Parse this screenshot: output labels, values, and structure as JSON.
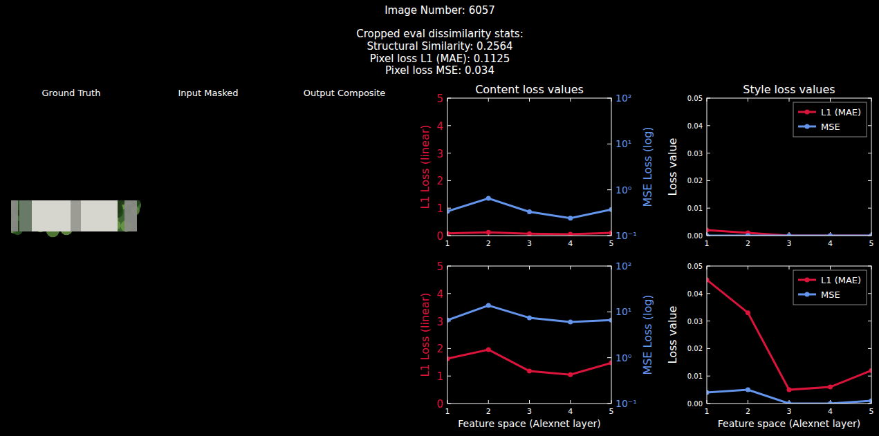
{
  "header": {
    "lines": [
      "Image Number: 6057",
      "Cropped eval dissimilarity stats:",
      "Structural Similarity: 0.2564",
      "Pixel loss L1 (MAE): 0.1125",
      "Pixel loss MSE: 0.034"
    ]
  },
  "panels": {
    "titles": [
      "Ground Truth",
      "Input Masked",
      "Output Composite"
    ]
  },
  "chart_data": [
    {
      "type": "line",
      "title": "Content loss values",
      "y_label": "L1 Loss (linear)",
      "y2_label": "MSE Loss (log)",
      "x": [
        1,
        2,
        3,
        4,
        5
      ],
      "xlim": [
        1,
        5
      ],
      "xticks": [
        1,
        2,
        3,
        4,
        5
      ],
      "ylim": [
        0,
        5
      ],
      "yticks": [
        0,
        1,
        2,
        3,
        4,
        5
      ],
      "y2lim": [
        0.1,
        100
      ],
      "y2ticks": [
        {
          "value": 0.1,
          "label": "10⁻¹"
        },
        {
          "value": 1,
          "label": "10⁰"
        },
        {
          "value": 10,
          "label": "10¹"
        },
        {
          "value": 100,
          "label": "10²"
        }
      ],
      "log": "y2",
      "series": [
        {
          "color": "#dc143c",
          "marker": "circle",
          "line_style": "solid",
          "values": [
            0.08,
            0.12,
            0.07,
            0.05,
            0.1
          ]
        },
        {
          "color": "#6495ed",
          "marker": "circle",
          "line_style": "solid",
          "axis": "y2",
          "values": [
            0.34,
            0.65,
            0.33,
            0.24,
            0.37
          ]
        }
      ]
    },
    {
      "type": "line",
      "title": "Style loss values",
      "y_label": "Loss value",
      "x": [
        1,
        2,
        3,
        4,
        5
      ],
      "xlim": [
        1,
        5
      ],
      "xticks": [
        1,
        2,
        3,
        4,
        5
      ],
      "ylim": [
        0,
        0.05
      ],
      "yticks": [
        {
          "value": 0,
          "label": "0.00"
        },
        {
          "value": 0.01,
          "label": "0.01"
        },
        {
          "value": 0.02,
          "label": "0.02"
        },
        {
          "value": 0.03,
          "label": "0.03"
        },
        {
          "value": 0.04,
          "label": "0.04"
        },
        {
          "value": 0.05,
          "label": "0.05"
        }
      ],
      "legend": "upper right",
      "series": [
        {
          "name": "L1 (MAE)",
          "color": "#dc143c",
          "marker": "circle",
          "line_style": "solid",
          "values": [
            0.002,
            0.001,
            0,
            0,
            0
          ]
        },
        {
          "name": "MSE",
          "color": "#6495ed",
          "marker": "circle",
          "line_style": "solid",
          "values": [
            0,
            0,
            0,
            0,
            0
          ]
        }
      ]
    },
    {
      "type": "line",
      "x_label": "Feature space (Alexnet layer)",
      "y_label": "L1 Loss (linear)",
      "y2_label": "MSE Loss (log)",
      "x": [
        1,
        2,
        3,
        4,
        5
      ],
      "xlim": [
        1,
        5
      ],
      "xticks": [
        1,
        2,
        3,
        4,
        5
      ],
      "ylim": [
        0,
        5
      ],
      "yticks": [
        0,
        1,
        2,
        3,
        4,
        5
      ],
      "y2lim": [
        0.1,
        100
      ],
      "y2ticks": [
        {
          "value": 0.1,
          "label": "10⁻¹"
        },
        {
          "value": 1,
          "label": "10⁰"
        },
        {
          "value": 10,
          "label": "10¹"
        },
        {
          "value": 100,
          "label": "10²"
        }
      ],
      "log": "y2",
      "series": [
        {
          "color": "#dc143c",
          "marker": "circle",
          "line_style": "solid",
          "values": [
            1.63,
            1.96,
            1.18,
            1.05,
            1.48
          ]
        },
        {
          "color": "#6495ed",
          "marker": "circle",
          "line_style": "solid",
          "axis": "y2",
          "values": [
            6.6,
            13.8,
            7.4,
            6.0,
            6.6
          ]
        }
      ]
    },
    {
      "type": "line",
      "x_label": "Feature space (Alexnet layer)",
      "y_label": "Loss value",
      "x": [
        1,
        2,
        3,
        4,
        5
      ],
      "xlim": [
        1,
        5
      ],
      "xticks": [
        1,
        2,
        3,
        4,
        5
      ],
      "ylim": [
        0,
        0.05
      ],
      "yticks": [
        {
          "value": 0,
          "label": "0.00"
        },
        {
          "value": 0.01,
          "label": "0.01"
        },
        {
          "value": 0.02,
          "label": "0.02"
        },
        {
          "value": 0.03,
          "label": "0.03"
        },
        {
          "value": 0.04,
          "label": "0.04"
        },
        {
          "value": 0.05,
          "label": "0.05"
        }
      ],
      "legend": "upper right",
      "series": [
        {
          "name": "L1 (MAE)",
          "color": "#dc143c",
          "marker": "circle",
          "line_style": "solid",
          "values": [
            0.045,
            0.033,
            0.005,
            0.006,
            0.012
          ]
        },
        {
          "name": "MSE",
          "color": "#6495ed",
          "marker": "circle",
          "line_style": "solid",
          "values": [
            0.004,
            0.005,
            0,
            0,
            0.001
          ]
        }
      ]
    }
  ]
}
